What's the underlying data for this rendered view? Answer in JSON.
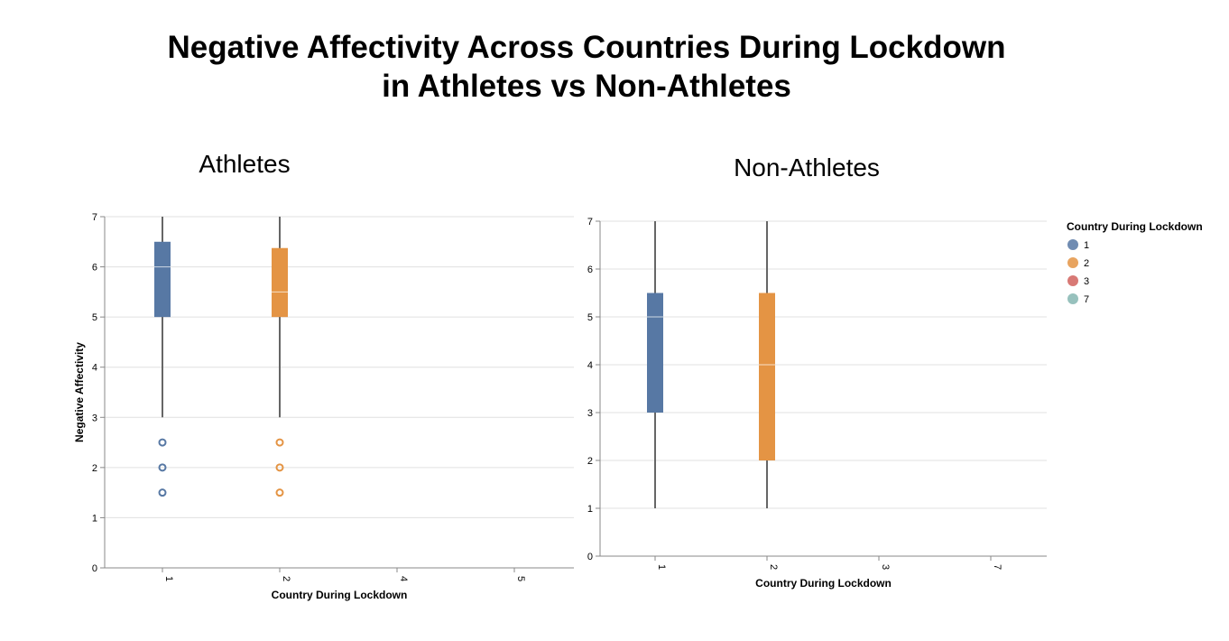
{
  "title_lines": [
    "Negative Affectivity Across Countries During Lockdown",
    "in Athletes vs Non-Athletes"
  ],
  "legend": {
    "title": "Country During Lockdown",
    "items": [
      {
        "label": "1",
        "color": "#5778a4"
      },
      {
        "label": "2",
        "color": "#e49444"
      },
      {
        "label": "3",
        "color": "#d1615d"
      },
      {
        "label": "7",
        "color": "#85b6b2"
      }
    ]
  },
  "chart_data": [
    {
      "type": "boxplot",
      "title": "Athletes",
      "xlabel": "Country During Lockdown",
      "ylabel": "Negative Affectivity",
      "categories": [
        "1",
        "2",
        "4",
        "5"
      ],
      "ylim": [
        0,
        7
      ],
      "yticks": [
        0,
        1,
        2,
        3,
        4,
        5,
        6,
        7
      ],
      "grid": true,
      "boxes": [
        {
          "category": "1",
          "color": "#5778a4",
          "whisker_low": 3,
          "q1": 5,
          "median": 6,
          "q3": 6.5,
          "whisker_high": 7,
          "outliers": [
            2.5,
            2,
            1.5
          ]
        },
        {
          "category": "2",
          "color": "#e49444",
          "whisker_low": 3,
          "q1": 5,
          "median": 5.5,
          "q3": 6.375,
          "whisker_high": 7,
          "outliers": [
            2.5,
            2,
            1.5
          ]
        }
      ]
    },
    {
      "type": "boxplot",
      "title": "Non-Athletes",
      "xlabel": "Country During Lockdown",
      "ylabel": "",
      "categories": [
        "1",
        "2",
        "3",
        "7"
      ],
      "ylim": [
        0,
        7
      ],
      "yticks": [
        0,
        1,
        2,
        3,
        4,
        5,
        6,
        7
      ],
      "grid": true,
      "boxes": [
        {
          "category": "1",
          "color": "#5778a4",
          "whisker_low": 1,
          "q1": 3,
          "median": 5,
          "q3": 5.5,
          "whisker_high": 7,
          "outliers": []
        },
        {
          "category": "2",
          "color": "#e49444",
          "whisker_low": 1,
          "q1": 2,
          "median": 4,
          "q3": 5.5,
          "whisker_high": 7,
          "outliers": []
        }
      ]
    }
  ]
}
